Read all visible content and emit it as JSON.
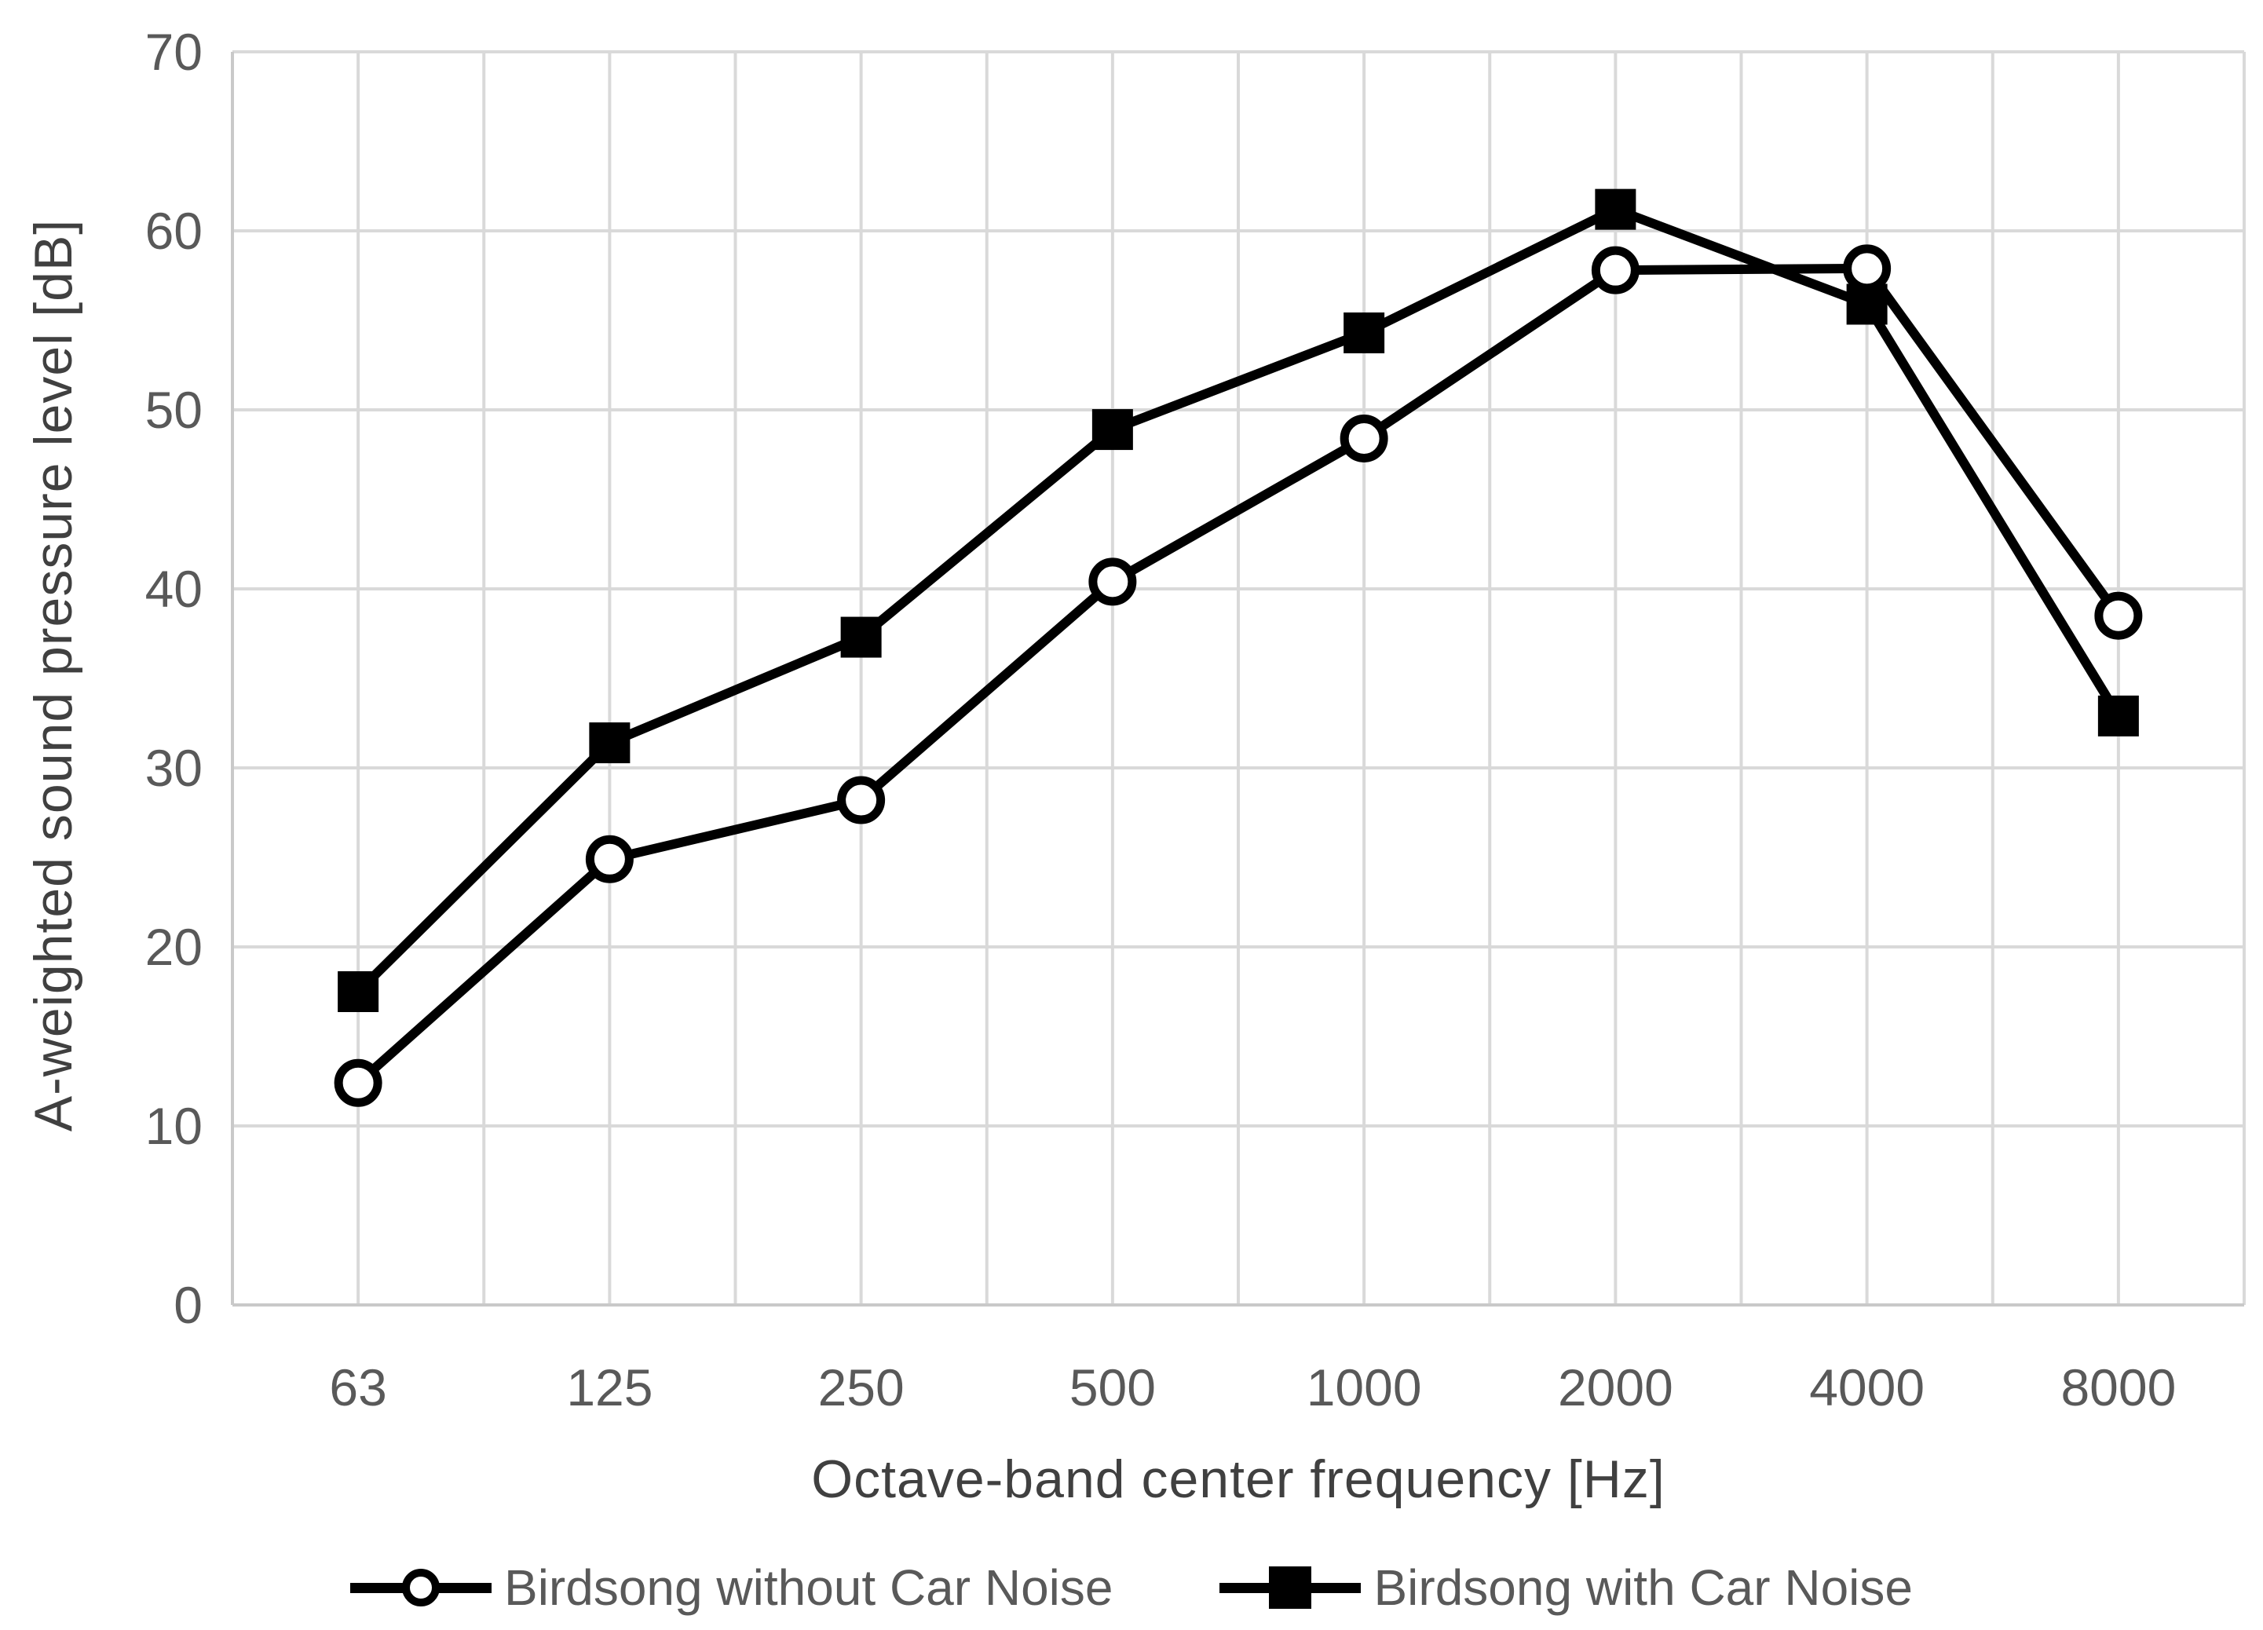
{
  "chart_data": {
    "type": "line",
    "title": "",
    "xlabel": "Octave-band center frequency [Hz]",
    "ylabel": "A-weighted sound pressure level [dB]",
    "categories": [
      "63",
      "125",
      "250",
      "500",
      "1000",
      "2000",
      "4000",
      "8000"
    ],
    "series": [
      {
        "name": "Birdsong without Car Noise",
        "marker": "circle",
        "color": "#000000",
        "values": [
          12.4,
          24.9,
          28.2,
          40.4,
          48.4,
          57.8,
          57.9,
          38.5
        ]
      },
      {
        "name": "Birdsong with Car Noise",
        "marker": "square",
        "color": "#000000",
        "values": [
          17.5,
          31.4,
          37.3,
          48.9,
          54.3,
          61.2,
          55.9,
          32.9
        ]
      }
    ],
    "ylim": [
      0,
      70
    ],
    "ytick_step": 10,
    "yticks": [
      0,
      10,
      20,
      30,
      40,
      50,
      60,
      70
    ],
    "grid": {
      "horizontal": true,
      "vertical": true,
      "vertical_per_half_category": true,
      "color": "#d9d9d9"
    },
    "axis_color": "#c9c9c9",
    "tick_label_color": "#595959",
    "axis_title_color": "#404040",
    "legend_position": "bottom"
  }
}
